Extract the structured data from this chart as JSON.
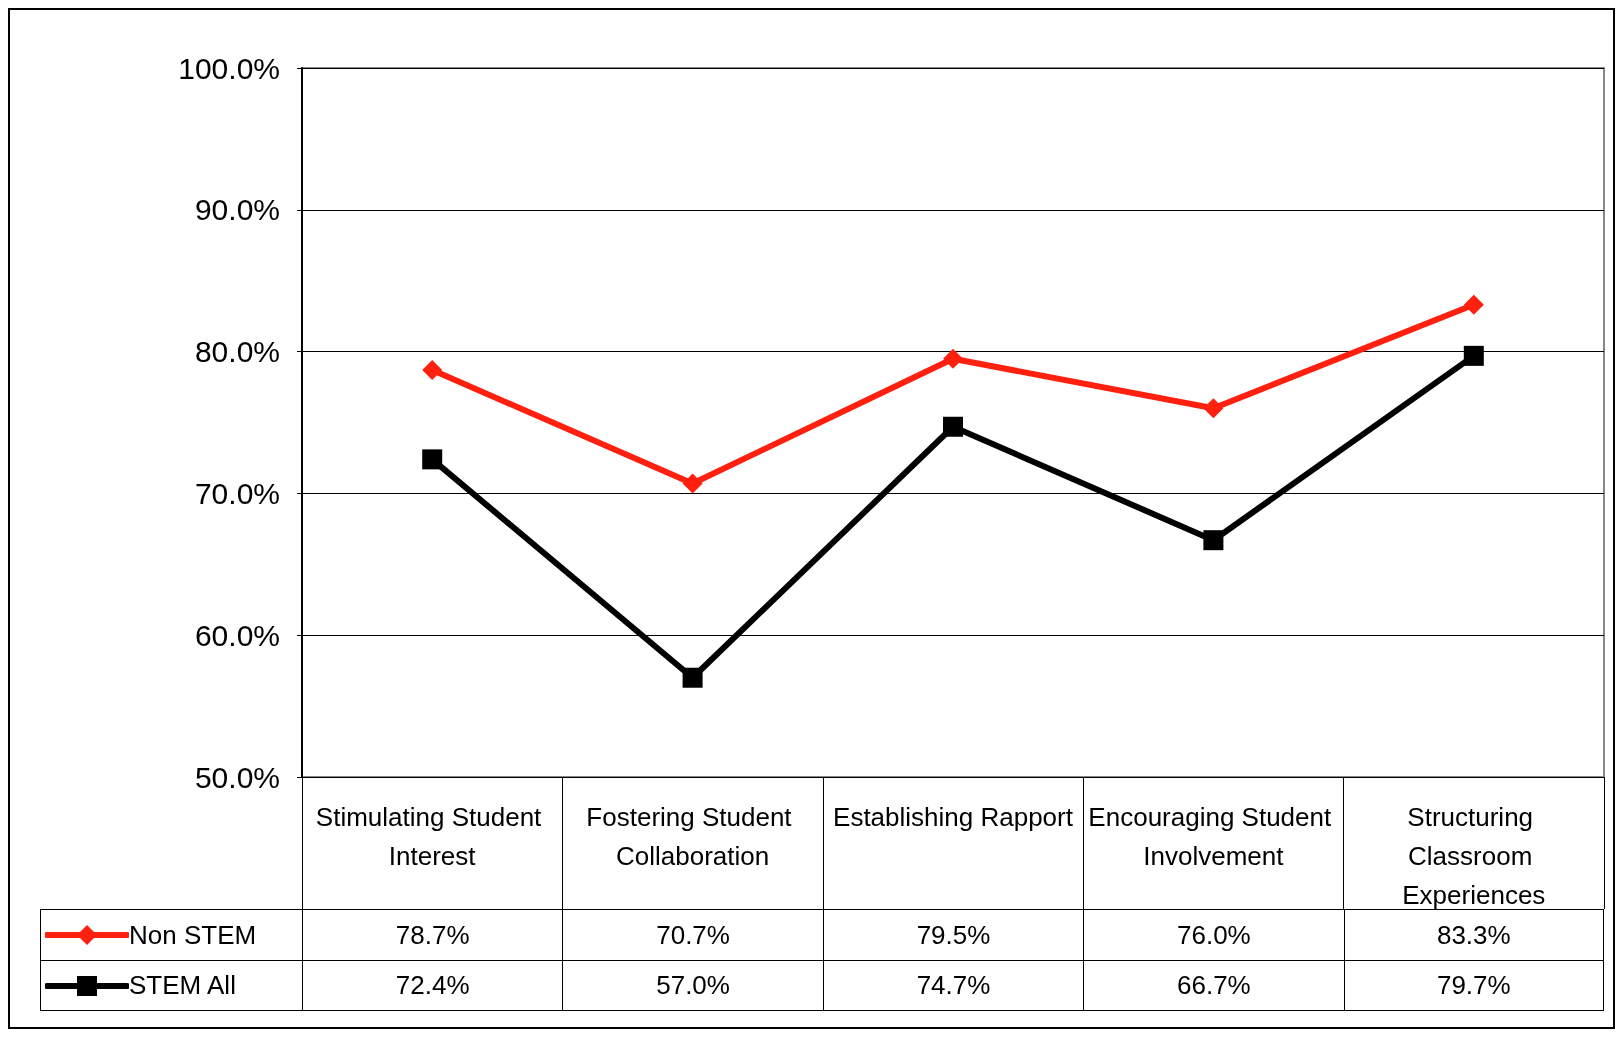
{
  "chart_data": {
    "type": "line",
    "categories": [
      "Stimulating Student Interest",
      "Fostering Student Collaboration",
      "Establishing Rapport",
      "Encouraging Student Involvement",
      "Structuring Classroom Experiences"
    ],
    "ylim": [
      50,
      100
    ],
    "yticks": [
      {
        "value": 50,
        "label": "50.0%"
      },
      {
        "value": 60,
        "label": "60.0%"
      },
      {
        "value": 70,
        "label": "70.0%"
      },
      {
        "value": 80,
        "label": "80.0%"
      },
      {
        "value": 90,
        "label": "90.0%"
      },
      {
        "value": 100,
        "label": "100.0%"
      }
    ],
    "grid": "y",
    "legend": "bottom",
    "line_style": "solid",
    "series": [
      {
        "name": "Non STEM",
        "color": "#ff2010",
        "marker": "diamond",
        "values": [
          78.7,
          70.7,
          79.5,
          76.0,
          83.3
        ],
        "value_labels": [
          "78.7%",
          "70.7%",
          "79.5%",
          "76.0%",
          "83.3%"
        ]
      },
      {
        "name": "STEM All",
        "color": "#000000",
        "marker": "square",
        "values": [
          72.4,
          57.0,
          74.7,
          66.7,
          79.7
        ],
        "value_labels": [
          "72.4%",
          "57.0%",
          "74.7%",
          "66.7%",
          "79.7%"
        ]
      }
    ]
  }
}
